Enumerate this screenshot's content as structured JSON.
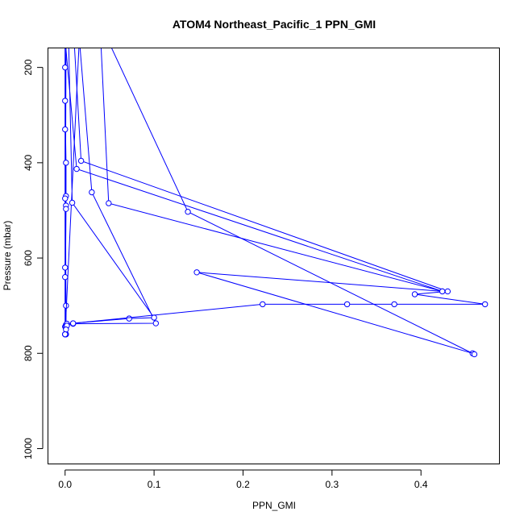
{
  "chart_data": {
    "type": "line",
    "title": "ATOM4 Northeast_Pacific_1 PPN_GMI",
    "xlabel": "PPN_GMI",
    "ylabel": "Pressure (mbar)",
    "xlim": [
      -0.0188,
      0.4886
    ],
    "ylim": [
      1033,
      160
    ],
    "y_reversed": true,
    "x_ticks": [
      0.0,
      0.1,
      0.2,
      0.3,
      0.4
    ],
    "x_tick_labels": [
      "0.0",
      "0.1",
      "0.2",
      "0.3",
      "0.4"
    ],
    "y_ticks": [
      200,
      400,
      600,
      800,
      1000
    ],
    "y_tick_labels": [
      "200",
      "400",
      "600",
      "800",
      "1000"
    ],
    "series_color": "#0000ff",
    "marker": "open-circle",
    "grid": false,
    "legend": "none",
    "series": [
      {
        "x": [
          0.0,
          0.0,
          0.001,
          0.001,
          0.0,
          0.001,
          0.001,
          0.0,
          0.0,
          0.001,
          0.0,
          0.001,
          0.0,
          0.0,
          0.001,
          0.0,
          0.0,
          0.001,
          0.0,
          0.001
        ],
        "y": [
          140,
          270,
          400,
          490,
          620,
          700,
          760,
          150,
          330,
          470,
          640,
          740,
          760,
          200,
          497,
          744,
          760,
          150,
          475,
          760
        ]
      },
      {
        "x": [
          0.004,
          0.008,
          0.1,
          0.072,
          0.002,
          0.001,
          0.0,
          0.016,
          0.03,
          0.102,
          0.009,
          0.002,
          0.001,
          0.0
        ],
        "y": [
          150,
          484,
          725,
          727,
          738,
          744,
          760,
          140,
          462,
          737,
          738,
          742,
          750,
          760
        ]
      },
      {
        "x": [
          0.0,
          0.013,
          0.424,
          0.148,
          0.458
        ],
        "y": [
          140,
          413,
          670,
          630,
          800
        ]
      },
      {
        "x": [
          0.01,
          0.018,
          0.43,
          0.393,
          0.472,
          0.37,
          0.317,
          0.222,
          0.009
        ],
        "y": [
          140,
          396,
          670,
          676,
          697,
          697,
          697,
          697,
          737
        ]
      },
      {
        "x": [
          0.04,
          0.049,
          0.424
        ],
        "y": [
          140,
          485,
          670
        ]
      },
      {
        "x": [
          0.05,
          0.138,
          0.46
        ],
        "y": [
          150,
          503,
          802
        ]
      }
    ]
  }
}
